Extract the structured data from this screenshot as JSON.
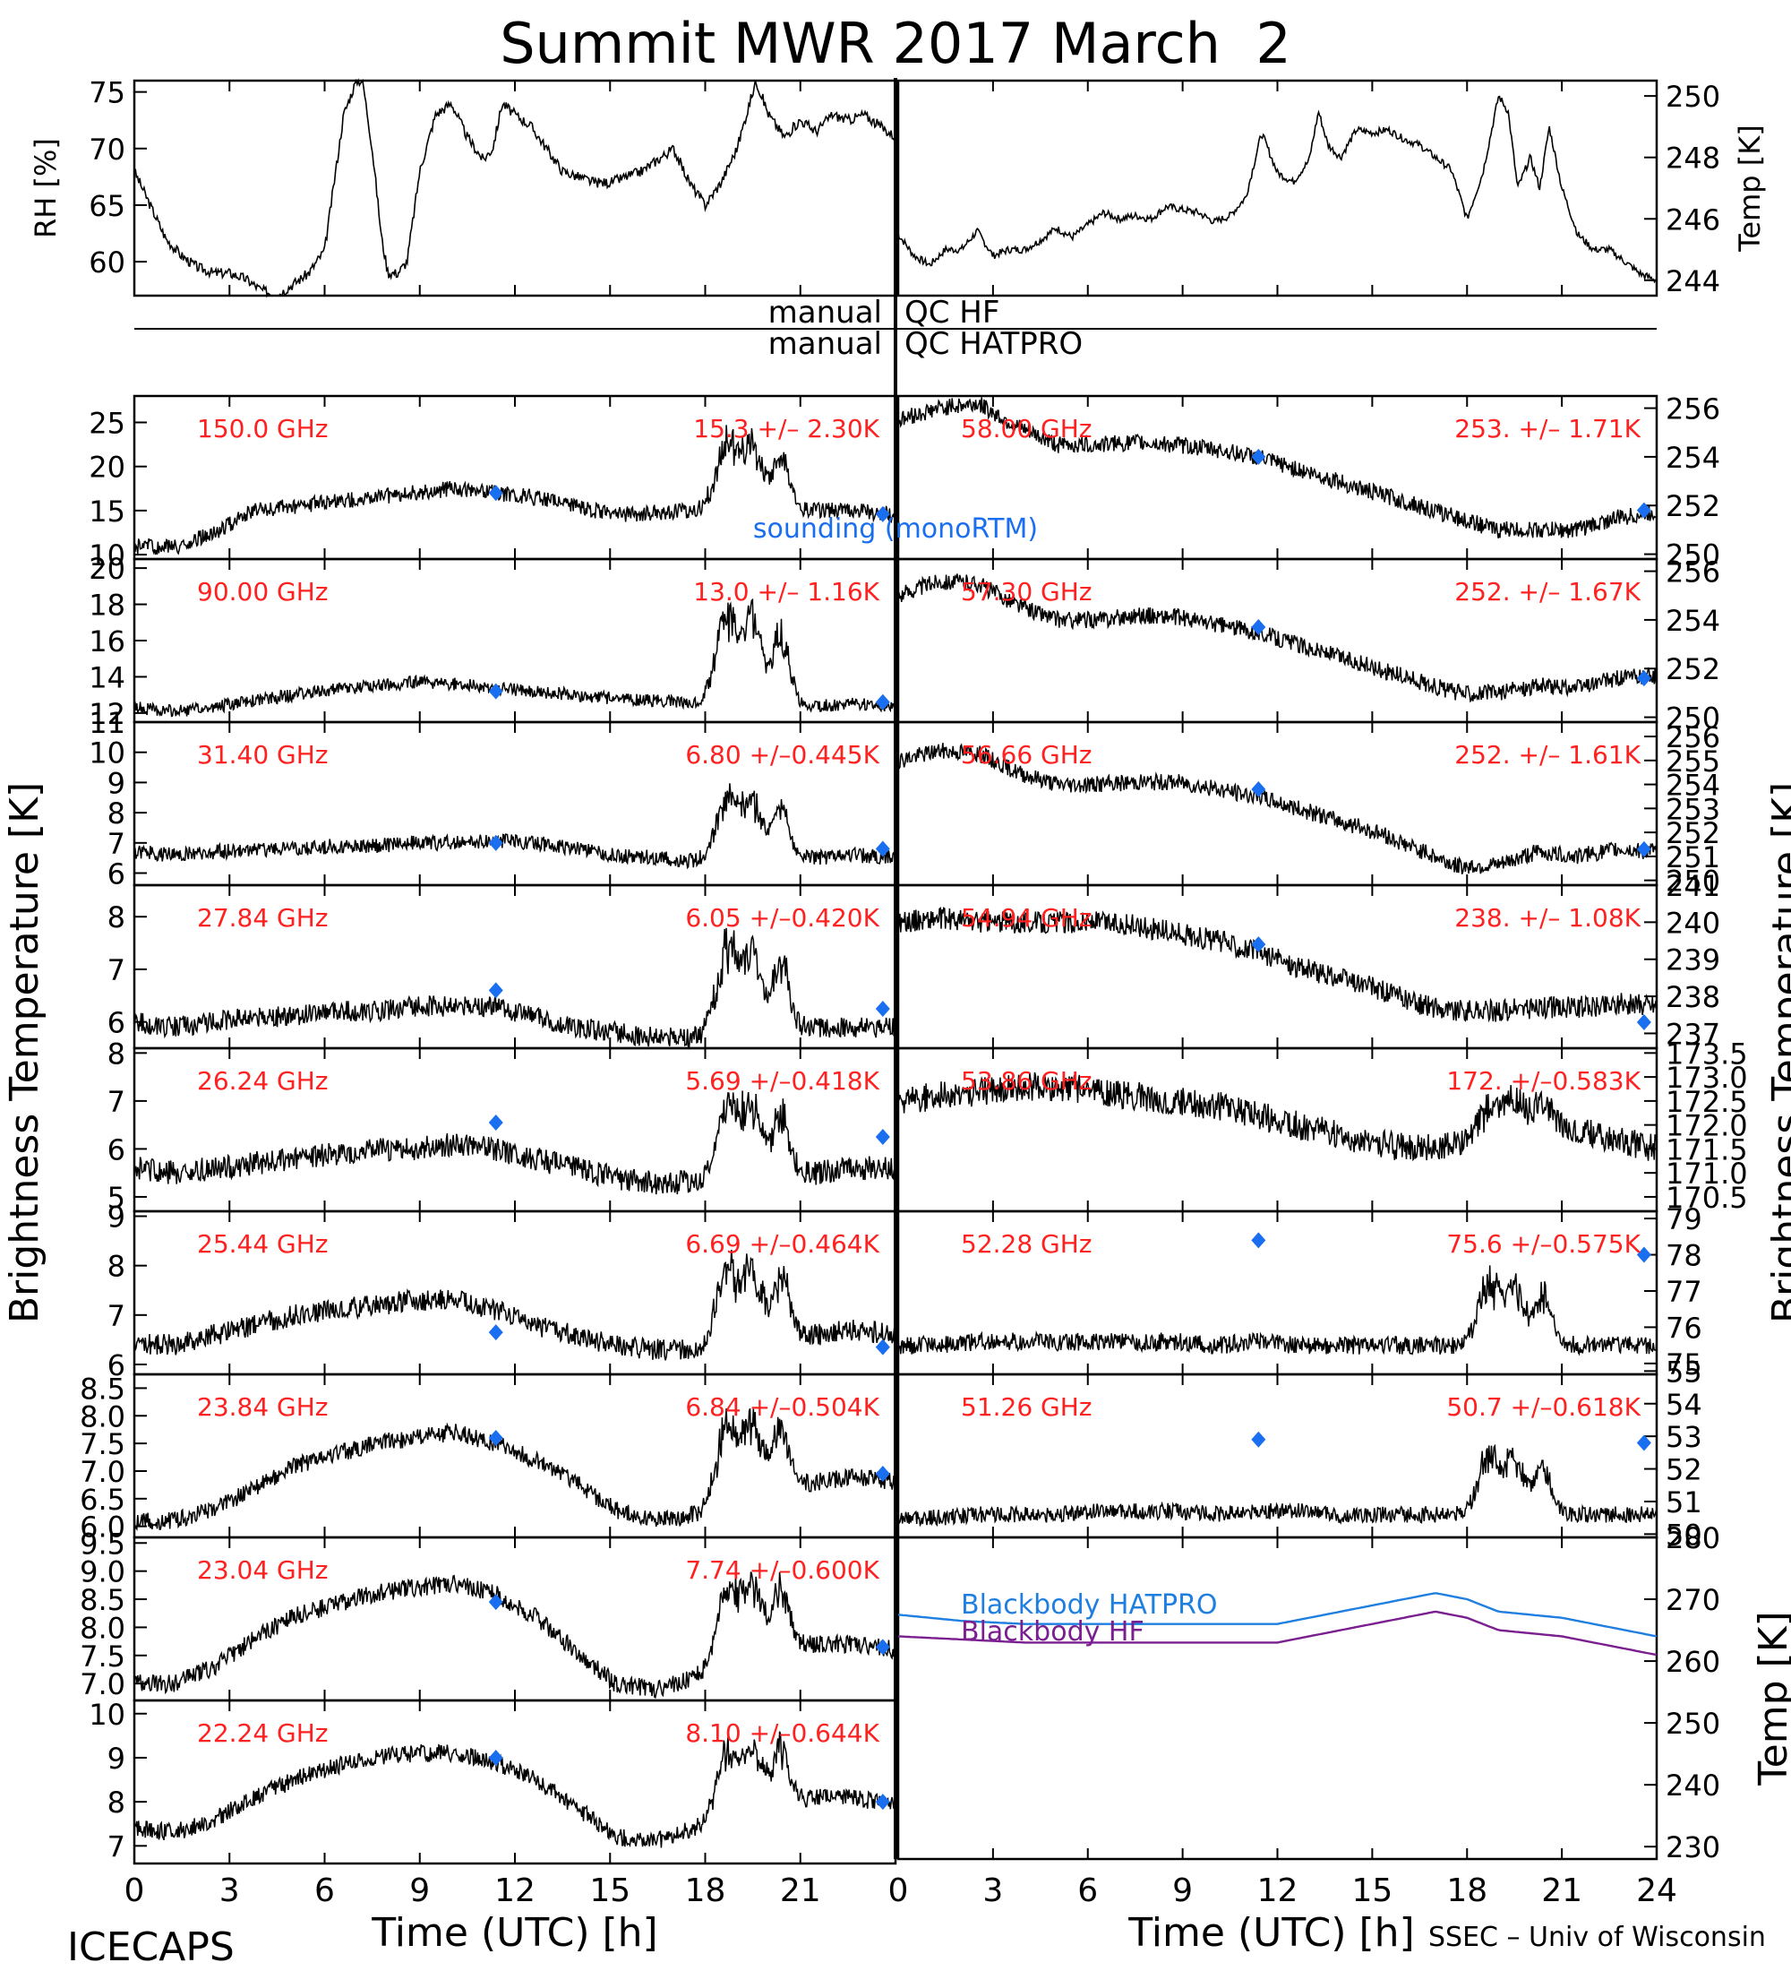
{
  "figure": {
    "title": "Summit MWR 2017 March  2",
    "footer_left": "ICECAPS",
    "footer_right": "SSEC – Univ of Wisconsin",
    "ylabel_left": "Brightness Temperature [K]",
    "ylabel_right": "Brightness Temperature [K]",
    "qc_left_1": "manual",
    "qc_right_1": "QC HF",
    "qc_left_2": "manual",
    "qc_right_2": "QC HATPRO",
    "colors": {
      "trace": "#000000",
      "channel_label": "#ff2020",
      "sounding": "#1a6ff0",
      "bb_hatpro": "#1f7fe0",
      "bb_hf": "#7a1f8f"
    }
  },
  "chart_data": [
    {
      "id": "rh",
      "type": "line",
      "panel": "top-left",
      "ylabel": "RH [%]",
      "xlim": [
        0,
        24
      ],
      "ylim": [
        57,
        76
      ],
      "yticks": [
        60,
        65,
        70,
        75
      ],
      "series": [
        {
          "x": [
            0,
            0.5,
            1,
            1.5,
            2,
            2.5,
            3,
            3.5,
            4,
            4.5,
            5,
            5.5,
            6,
            6.3,
            6.6,
            7,
            7.2,
            7.5,
            7.8,
            8,
            8.3,
            8.6,
            9,
            9.5,
            10,
            10.5,
            11,
            11.3,
            11.6,
            12,
            12.5,
            13,
            13.5,
            14,
            14.5,
            15,
            15.5,
            16,
            16.5,
            17,
            17.5,
            18,
            18.5,
            19,
            19.3,
            19.6,
            20,
            20.5,
            21,
            21.5,
            22,
            22.5,
            23,
            23.5,
            24
          ],
          "y": [
            68,
            65,
            62,
            60.5,
            59.5,
            59,
            59,
            58.5,
            57.5,
            57,
            58,
            59,
            61,
            67,
            73,
            76,
            76,
            70,
            62,
            59,
            59,
            60,
            68,
            73,
            74,
            71,
            69,
            70,
            74,
            73,
            72,
            70,
            68,
            67.5,
            67,
            67,
            67.5,
            68,
            69,
            70,
            67,
            65,
            67,
            70,
            73,
            76,
            73,
            71,
            72.5,
            71.5,
            73,
            72.5,
            73,
            72,
            71
          ]
        }
      ]
    },
    {
      "id": "temp",
      "type": "line",
      "panel": "top-right",
      "ylabel": "Temp [K]",
      "xlim": [
        0,
        24
      ],
      "ylim": [
        243.5,
        250.5
      ],
      "yticks": [
        244,
        246,
        248,
        250
      ],
      "series": [
        {
          "x": [
            0,
            0.5,
            1,
            1.5,
            2,
            2.5,
            3,
            3.5,
            4,
            4.5,
            5,
            5.5,
            6,
            6.5,
            7,
            7.5,
            8,
            8.5,
            9,
            9.5,
            10,
            10.5,
            11,
            11.5,
            12,
            12.5,
            13,
            13.3,
            13.6,
            14,
            14.5,
            15,
            15.5,
            16,
            16.5,
            17,
            17.5,
            18,
            18.5,
            19,
            19.3,
            19.6,
            20,
            20.3,
            20.6,
            21,
            21.5,
            22,
            22.5,
            23,
            23.5,
            24
          ],
          "y": [
            245.5,
            244.8,
            244.5,
            245,
            245,
            245.6,
            244.8,
            245,
            245,
            245.3,
            245.7,
            245.4,
            245.8,
            246.2,
            246,
            246.1,
            246,
            246.4,
            246.3,
            246.2,
            245.9,
            246.1,
            246.7,
            248.8,
            247.5,
            247.2,
            247.9,
            249.5,
            248.4,
            248,
            248.9,
            248.8,
            248.9,
            248.6,
            248.4,
            248,
            247.6,
            246,
            247.5,
            250,
            249.5,
            247,
            248,
            247,
            249,
            247,
            245.5,
            245,
            245,
            244.6,
            244.2,
            244
          ]
        }
      ]
    },
    {
      "id": "bb",
      "type": "line",
      "panel": "bottom-right",
      "ylabel": "Temp [K]",
      "xlim": [
        0,
        24
      ],
      "ylim": [
        228,
        280
      ],
      "yticks": [
        230,
        240,
        250,
        260,
        270,
        280
      ],
      "series": [
        {
          "name": "Blackbody HATPRO",
          "x": [
            0,
            2,
            4,
            6,
            8,
            10,
            12,
            14,
            16,
            17,
            18,
            19,
            20,
            21,
            22,
            23,
            24
          ],
          "y": [
            267.5,
            266.5,
            266,
            266,
            266,
            266,
            266,
            268,
            270,
            271,
            270,
            268,
            267.5,
            267,
            266,
            265,
            264
          ]
        },
        {
          "name": "Blackbody HF",
          "x": [
            0,
            2,
            4,
            6,
            8,
            10,
            12,
            14,
            16,
            17,
            18,
            19,
            20,
            21,
            22,
            23,
            24
          ],
          "y": [
            264,
            263.5,
            263,
            263,
            263,
            263,
            263,
            265,
            267,
            268,
            267,
            265,
            264.5,
            264,
            263,
            262,
            261
          ]
        }
      ]
    },
    {
      "id": "l0",
      "type": "line",
      "panel": "left",
      "freq": "150.0 GHz",
      "stats": "15.3 +/– 2.30K",
      "ylim": [
        9.5,
        28
      ],
      "yticks": [
        10,
        15,
        20,
        25
      ],
      "base": [
        11,
        10.8,
        12.5,
        15,
        15.5,
        16,
        16.5,
        17,
        17.5,
        17,
        16.5,
        15.5,
        14.5,
        14.8,
        15,
        15.2,
        15.5,
        15,
        15,
        14.5
      ],
      "noise": 0.9,
      "spike": 10,
      "sounding": [
        [
          11.4,
          17
        ],
        [
          23.6,
          14.6
        ]
      ]
    },
    {
      "id": "l1",
      "type": "line",
      "panel": "left",
      "freq": "90.00 GHz",
      "stats": "13.0 +/– 1.16K",
      "ylim": [
        11.5,
        20.5
      ],
      "yticks": [
        12,
        14,
        16,
        18,
        20
      ],
      "base": [
        12.3,
        12.1,
        12.3,
        12.7,
        13,
        13.3,
        13.5,
        13.7,
        13.6,
        13.4,
        13.2,
        13,
        12.8,
        12.7,
        12.6,
        12.5,
        12.6,
        12.4,
        12.5,
        12.4
      ],
      "noise": 0.35,
      "spike": 6.5,
      "sounding": [
        [
          11.4,
          13.2
        ],
        [
          23.6,
          12.6
        ]
      ]
    },
    {
      "id": "l2",
      "type": "line",
      "panel": "left",
      "freq": "31.40 GHz",
      "stats": "6.80 +/–0.445K",
      "ylim": [
        5.6,
        11
      ],
      "yticks": [
        6,
        7,
        8,
        9,
        10,
        11
      ],
      "base": [
        6.7,
        6.6,
        6.7,
        6.8,
        6.8,
        6.9,
        6.9,
        7,
        7,
        7.1,
        7,
        6.8,
        6.6,
        6.5,
        6.4,
        6.4,
        6.6,
        6.5,
        6.6,
        6.5
      ],
      "noise": 0.25,
      "spike": 2.7,
      "sounding": [
        [
          11.4,
          7
        ],
        [
          23.6,
          6.8
        ]
      ]
    },
    {
      "id": "l3",
      "type": "line",
      "panel": "left",
      "freq": "27.84 GHz",
      "stats": "6.05 +/–0.420K",
      "ylim": [
        5.5,
        8.6
      ],
      "yticks": [
        6,
        7,
        8
      ],
      "base": [
        6,
        5.9,
        6,
        6.1,
        6.1,
        6.2,
        6.2,
        6.3,
        6.3,
        6.3,
        6.1,
        5.9,
        5.8,
        5.7,
        5.7,
        5.8,
        5.9,
        5.9,
        5.9,
        5.9
      ],
      "noise": 0.2,
      "spike": 2.1,
      "sounding": [
        [
          11.4,
          6.6
        ],
        [
          23.6,
          6.25
        ]
      ]
    },
    {
      "id": "l4",
      "type": "line",
      "panel": "left",
      "freq": "26.24 GHz",
      "stats": "5.69 +/–0.418K",
      "ylim": [
        4.7,
        8.1
      ],
      "yticks": [
        5,
        6,
        7,
        8
      ],
      "base": [
        5.6,
        5.5,
        5.6,
        5.7,
        5.8,
        5.9,
        6,
        6,
        6.1,
        6,
        5.8,
        5.6,
        5.4,
        5.3,
        5.3,
        5.4,
        5.5,
        5.5,
        5.6,
        5.6
      ],
      "noise": 0.25,
      "spike": 2.1,
      "sounding": [
        [
          11.4,
          6.55
        ],
        [
          23.6,
          6.25
        ]
      ]
    },
    {
      "id": "l5",
      "type": "line",
      "panel": "left",
      "freq": "25.44 GHz",
      "stats": "6.69 +/–0.464K",
      "ylim": [
        5.8,
        9.1
      ],
      "yticks": [
        6,
        7,
        8,
        9
      ],
      "base": [
        6.4,
        6.4,
        6.6,
        6.8,
        7,
        7.1,
        7.2,
        7.3,
        7.3,
        7.1,
        6.8,
        6.6,
        6.4,
        6.3,
        6.3,
        6.4,
        6.6,
        6.6,
        6.7,
        6.6
      ],
      "noise": 0.22,
      "spike": 2,
      "sounding": [
        [
          11.4,
          6.65
        ],
        [
          23.6,
          6.35
        ]
      ]
    },
    {
      "id": "l6",
      "type": "line",
      "panel": "left",
      "freq": "23.84 GHz",
      "stats": "6.84 +/–0.504K",
      "ylim": [
        5.8,
        8.75
      ],
      "yticks": [
        6.0,
        6.5,
        7.0,
        7.5,
        8.0,
        8.5
      ],
      "base": [
        6.1,
        6.1,
        6.3,
        6.7,
        7.1,
        7.3,
        7.5,
        7.6,
        7.7,
        7.5,
        7.2,
        6.8,
        6.3,
        6.1,
        6.2,
        6.4,
        6.7,
        6.8,
        6.9,
        6.8
      ],
      "noise": 0.16,
      "spike": 1.9,
      "sounding": [
        [
          11.4,
          7.6
        ],
        [
          23.6,
          6.95
        ]
      ]
    },
    {
      "id": "l7",
      "type": "line",
      "panel": "left",
      "freq": "23.04 GHz",
      "stats": "7.74 +/–0.600K",
      "ylim": [
        6.7,
        9.6
      ],
      "yticks": [
        7.0,
        7.5,
        8.0,
        8.5,
        9.0,
        9.5
      ],
      "base": [
        7,
        7,
        7.3,
        7.8,
        8.2,
        8.4,
        8.6,
        8.7,
        8.8,
        8.6,
        8.2,
        7.6,
        7,
        6.9,
        7.1,
        7.4,
        7.7,
        7.7,
        7.7,
        7.6
      ],
      "noise": 0.16,
      "spike": 1.8,
      "sounding": [
        [
          11.4,
          8.45
        ],
        [
          23.6,
          7.65
        ]
      ]
    },
    {
      "id": "l8",
      "type": "line",
      "panel": "left",
      "freq": "22.24 GHz",
      "stats": "8.10 +/–0.644K",
      "ylim": [
        6.6,
        10.3
      ],
      "yticks": [
        7,
        8,
        9,
        10
      ],
      "base": [
        7.4,
        7.3,
        7.6,
        8.1,
        8.5,
        8.8,
        9,
        9.1,
        9.1,
        8.9,
        8.5,
        7.9,
        7.2,
        7.1,
        7.4,
        7.7,
        8,
        8.1,
        8.1,
        7.9
      ],
      "noise": 0.2,
      "spike": 2,
      "sounding": [
        [
          11.4,
          9
        ],
        [
          23.6,
          8
        ]
      ]
    },
    {
      "id": "r0",
      "type": "line",
      "panel": "right",
      "freq": "58.00 GHz",
      "stats": "253. +/– 1.71K",
      "ylim": [
        249.8,
        256.5
      ],
      "yticks": [
        250,
        252,
        254,
        256
      ],
      "base": [
        255.5,
        256,
        256.2,
        255.2,
        254.5,
        254.5,
        254.6,
        254.5,
        254.3,
        254,
        253.5,
        253,
        252.5,
        252,
        251.5,
        251,
        251,
        251,
        251.5,
        251.7
      ],
      "noise": 0.35,
      "spike": 0,
      "sounding": [
        [
          11.4,
          254
        ],
        [
          23.6,
          251.8
        ]
      ]
    },
    {
      "id": "r1",
      "type": "line",
      "panel": "right",
      "freq": "57.30 GHz",
      "stats": "252. +/– 1.67K",
      "ylim": [
        249.8,
        256.5
      ],
      "yticks": [
        250,
        252,
        254,
        256
      ],
      "base": [
        255,
        255.6,
        255.5,
        254.6,
        254,
        254,
        254.2,
        254.1,
        253.8,
        253.5,
        253,
        252.5,
        252,
        251.5,
        251,
        251,
        251.3,
        251.2,
        251.6,
        251.7
      ],
      "noise": 0.35,
      "spike": 0,
      "sounding": [
        [
          11.4,
          253.7
        ],
        [
          23.6,
          251.6
        ]
      ]
    },
    {
      "id": "r2",
      "type": "line",
      "panel": "right",
      "freq": "56.66 GHz",
      "stats": "252. +/– 1.61K",
      "ylim": [
        249.8,
        256.6
      ],
      "yticks": [
        250,
        251,
        252,
        253,
        254,
        255,
        256
      ],
      "base": [
        255,
        255.4,
        255.3,
        254.5,
        254,
        254,
        254.1,
        254.1,
        253.8,
        253.5,
        253,
        252.5,
        252,
        251.3,
        250.6,
        250.6,
        251.2,
        251,
        251.3,
        251.2
      ],
      "noise": 0.35,
      "spike": 0,
      "sounding": [
        [
          11.4,
          253.8
        ],
        [
          23.6,
          251.3
        ]
      ]
    },
    {
      "id": "r3",
      "type": "line",
      "panel": "right",
      "freq": "54.94 GHz",
      "stats": "238. +/– 1.08K",
      "ylim": [
        236.6,
        241
      ],
      "yticks": [
        237,
        238,
        239,
        240,
        241
      ],
      "base": [
        240,
        240.1,
        240,
        240,
        240,
        240,
        239.9,
        239.7,
        239.5,
        239.2,
        238.8,
        238.5,
        238.2,
        237.8,
        237.6,
        237.6,
        237.7,
        237.7,
        237.8,
        237.8
      ],
      "noise": 0.3,
      "spike": 0,
      "sounding": [
        [
          11.4,
          239.4
        ],
        [
          23.6,
          237.3
        ]
      ]
    },
    {
      "id": "r4",
      "type": "line",
      "panel": "right",
      "freq": "53.86 GHz",
      "stats": "172. +/–0.583K",
      "ylim": [
        170.2,
        173.6
      ],
      "yticks": [
        170.5,
        171.0,
        171.5,
        172.0,
        172.5,
        173.0,
        173.5
      ],
      "base": [
        172.5,
        172.6,
        172.7,
        172.8,
        172.8,
        172.7,
        172.6,
        172.5,
        172.4,
        172.2,
        172,
        171.8,
        171.6,
        171.5,
        171.6,
        171.8,
        172.1,
        171.9,
        171.7,
        171.5
      ],
      "noise": 0.3,
      "spike": 0.8,
      "sounding": []
    },
    {
      "id": "r5",
      "type": "line",
      "panel": "right",
      "freq": "52.28 GHz",
      "stats": "75.6 +/–0.575K",
      "ylim": [
        74.7,
        79.2
      ],
      "yticks": [
        75,
        76,
        77,
        78,
        79
      ],
      "base": [
        75.5,
        75.5,
        75.6,
        75.6,
        75.6,
        75.6,
        75.6,
        75.6,
        75.5,
        75.6,
        75.5,
        75.5,
        75.5,
        75.5,
        75.5,
        75.4,
        75.6,
        75.5,
        75.5,
        75.5
      ],
      "noise": 0.25,
      "spike": 2.3,
      "sounding": [
        [
          11.4,
          78.4
        ],
        [
          23.6,
          78
        ]
      ]
    },
    {
      "id": "r6",
      "type": "line",
      "panel": "right",
      "freq": "51.26 GHz",
      "stats": "50.7 +/–0.618K",
      "ylim": [
        49.9,
        54.9
      ],
      "yticks": [
        50,
        51,
        52,
        53,
        54,
        55
      ],
      "base": [
        50.5,
        50.5,
        50.6,
        50.6,
        50.6,
        50.7,
        50.7,
        50.7,
        50.6,
        50.7,
        50.7,
        50.6,
        50.6,
        50.6,
        50.6,
        50.5,
        50.7,
        50.6,
        50.6,
        50.6
      ],
      "noise": 0.25,
      "spike": 2.5,
      "sounding": [
        [
          11.4,
          52.9
        ],
        [
          23.6,
          52.8
        ]
      ]
    }
  ],
  "axes": {
    "xlim": [
      0,
      24
    ],
    "xticks": [
      0,
      3,
      6,
      9,
      12,
      15,
      18,
      21,
      24
    ],
    "xtick_labels_left": [
      "0",
      "3",
      "6",
      "9",
      "12",
      "15",
      "18",
      "21"
    ],
    "xtick_labels_right": [
      "0",
      "3",
      "6",
      "9",
      "12",
      "15",
      "18",
      "21",
      "24"
    ],
    "xlabel": "Time (UTC) [h]"
  },
  "sounding_label": "sounding (monoRTM)"
}
